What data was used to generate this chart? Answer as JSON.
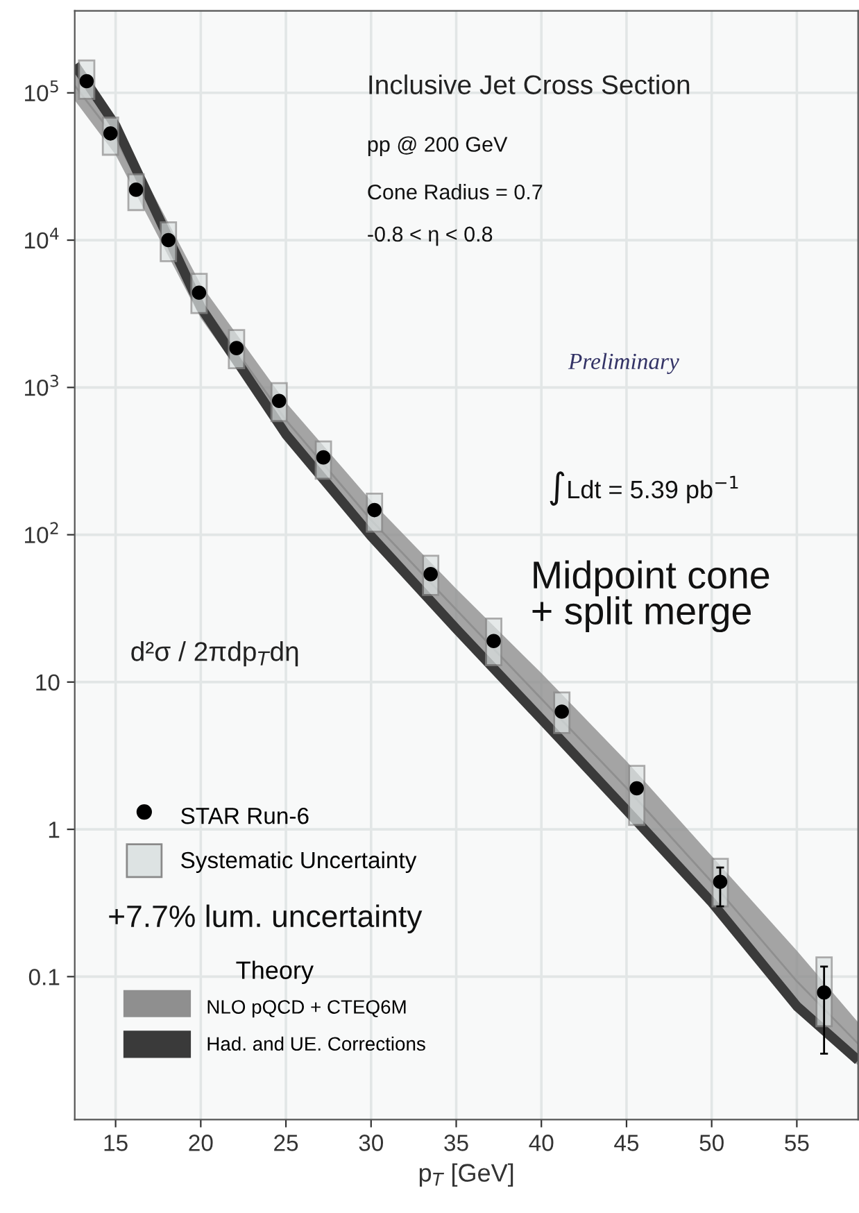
{
  "chart_data": {
    "type": "scatter",
    "title": "Inclusive Jet Cross Section",
    "xlabel": "p$_{T}$ [GeV]",
    "ylabel": "d²σ / 2πdp$_{T}$dη",
    "legend_title": "Theory",
    "annotations": [
      "pp @ 200 GeV",
      "Cone Radius = 0.7",
      "-0.8 < η < 0.8",
      "Preliminary",
      "∫Ldt = 5.39 pb$^{−1}$",
      "Midpoint cone\n+ split merge",
      "+7.7% lum. uncertainty"
    ],
    "log": "y",
    "grid": true,
    "legend": "bottom left",
    "xlim": [
      12.6,
      58.6
    ],
    "xticks": [
      15,
      20,
      25,
      30,
      35,
      40,
      45,
      50,
      55
    ],
    "ylim": [
      0.0107,
      360000
    ],
    "yticks": [
      {
        "value": 0.1,
        "label": "0.1"
      },
      {
        "value": 1,
        "label": "1"
      },
      {
        "value": 10,
        "label": "10"
      },
      {
        "value": 100,
        "label": "10$^{2}$"
      },
      {
        "value": 1000,
        "label": "10$^{3}$"
      },
      {
        "value": 10000,
        "label": "10$^{4}$"
      },
      {
        "value": 100000,
        "label": "10$^{5}$"
      }
    ],
    "series": [
      {
        "name": "Had. and UE. Corrections",
        "type": "line",
        "color": "#3a3a3a",
        "x": [
          12.6,
          15,
          20,
          25,
          30,
          35,
          40,
          45,
          50,
          55,
          58.6
        ],
        "values": [
          155000,
          60000,
          3500,
          480,
          98,
          23,
          5.6,
          1.35,
          0.32,
          0.063,
          0.027
        ]
      },
      {
        "name": "NLO pQCD + CTEQ6M",
        "type": "line",
        "color": "#8f8f8f",
        "x": [
          12.6,
          15,
          20,
          25,
          30,
          35,
          40,
          45,
          50,
          55,
          58.6
        ],
        "values": [
          112000,
          49000,
          3840,
          600,
          126,
          31,
          7.7,
          1.91,
          0.44,
          0.093,
          0.035
        ],
        "lower": [
          89000,
          38000,
          2950,
          460,
          93,
          22,
          5.2,
          1.26,
          0.3,
          0.058,
          0.025
        ],
        "upper": [
          140000,
          63000,
          5000,
          790,
          170,
          43,
          11.5,
          2.9,
          0.66,
          0.15,
          0.049
        ]
      },
      {
        "name": "Systematic Uncertainty",
        "type": "bar",
        "color": "#dde3e3",
        "x": [
          13.3,
          14.7,
          16.2,
          18.1,
          19.9,
          22.1,
          24.6,
          27.2,
          30.2,
          33.5,
          37.2,
          41.2,
          45.6,
          50.5,
          56.6
        ],
        "base": [
          91000,
          38000,
          16000,
          7200,
          3200,
          1350,
          590,
          240,
          105,
          39,
          13,
          4.5,
          1.07,
          0.3,
          0.046
        ],
        "values": [
          75000,
          30000,
          12000,
          6000,
          2700,
          1100,
          480,
          190,
          85,
          33,
          14,
          4.0,
          1.63,
          0.33,
          0.089
        ]
      },
      {
        "name": "STAR Run-6",
        "color": "#000000",
        "marker": "circle",
        "x": [
          13.3,
          14.7,
          16.2,
          18.1,
          19.9,
          22.1,
          24.6,
          27.2,
          30.2,
          33.5,
          37.2,
          41.2,
          45.6,
          50.5,
          56.6
        ],
        "values": [
          120000,
          53000,
          22000,
          10000,
          4400,
          1850,
          810,
          335,
          147,
          54,
          19,
          6.3,
          1.9,
          0.44,
          0.078
        ],
        "errors": [
          null,
          null,
          null,
          null,
          null,
          null,
          null,
          null,
          null,
          null,
          null,
          null,
          null,
          [
            0.3,
            0.55
          ],
          [
            0.03,
            0.117
          ]
        ]
      }
    ]
  }
}
